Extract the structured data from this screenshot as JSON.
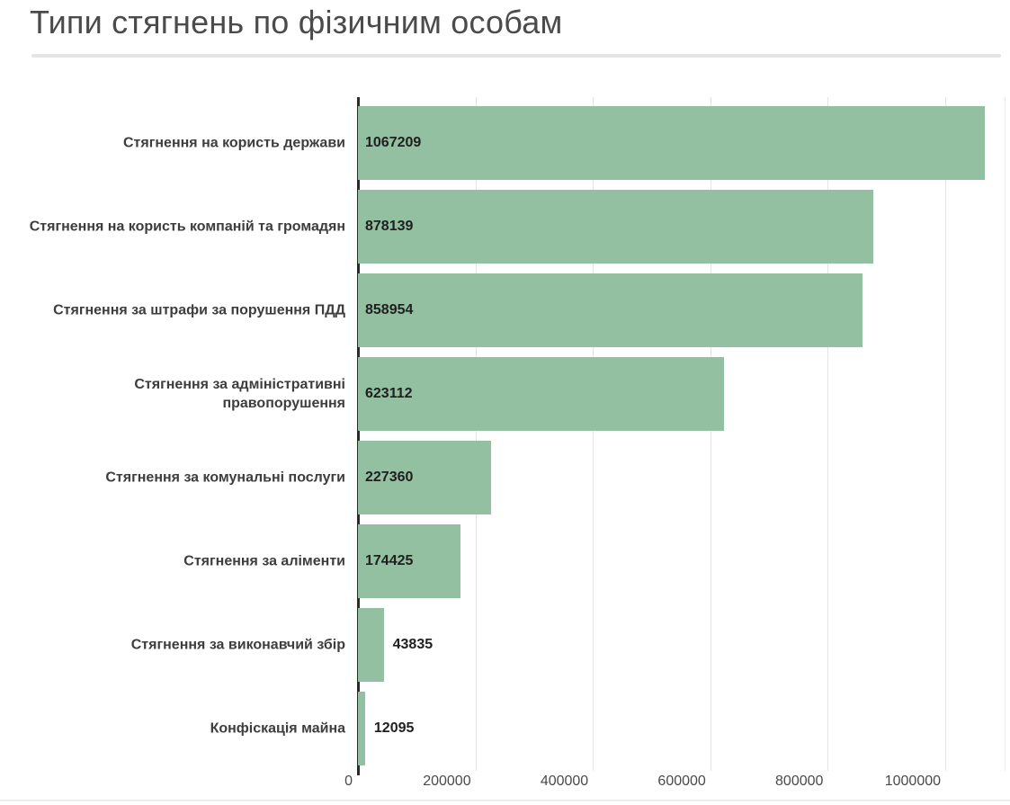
{
  "title": "Типи стягнень по фізичним особам",
  "chart_data": {
    "type": "bar",
    "orientation": "horizontal",
    "title": "Типи стягнень по фізичним особам",
    "categories": [
      "Стягнення на користь держави",
      "Стягнення на користь компаній та громадян",
      "Стягнення за штрафи за порушення ПДД",
      "Стягнення за адміністративні правопорушення",
      "Стягнення за комунальні послуги",
      "Стягнення за аліменти",
      "Стягнення за виконавчий збір",
      "Конфіскація майна"
    ],
    "values": [
      1067209,
      878139,
      858954,
      623112,
      227360,
      174425,
      43835,
      12095
    ],
    "value_labels": [
      "1067209",
      "878139",
      "858954",
      "623112",
      "227360",
      "174425",
      "43835",
      "12095"
    ],
    "x_ticks": [
      0,
      200000,
      400000,
      600000,
      800000,
      1000000
    ],
    "x_tick_labels": [
      "0",
      "200000",
      "400000",
      "600000",
      "800000",
      "1000000"
    ],
    "xlim": [
      0,
      1101000
    ],
    "grid": true,
    "legend": "none",
    "colors": {
      "bar": "#93c0a0",
      "axis": "#2b2b2b",
      "grid": "#e4e4e4",
      "value_label": "#1f1f1f",
      "category_label": "#3d3d3d",
      "tick_label": "#4a4a4a",
      "title": "#4b4b4b",
      "divider": "#e4e4e4"
    }
  }
}
